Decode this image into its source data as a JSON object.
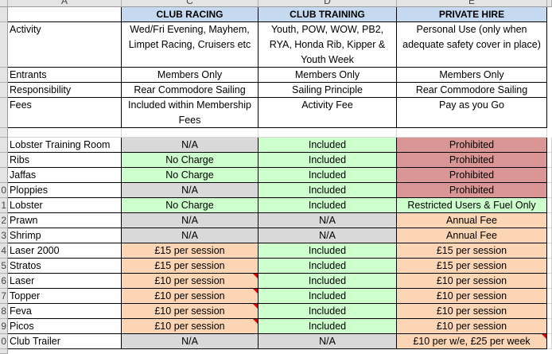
{
  "table": {
    "columns": [
      "A",
      "C",
      "D",
      "E"
    ],
    "header": [
      "CLUB RACING",
      "CLUB TRAINING",
      "PRIVATE HIRE"
    ],
    "info_rows": [
      {
        "label": "Activity",
        "cells": [
          [
            "Wed/Fri Evening, Mayhem,",
            "Limpet Racing, Cruisers etc"
          ],
          [
            "Youth, POW, WOW, PB2,",
            "RYA, Honda Rib, Kipper &",
            "Youth Week"
          ],
          [
            "Personal Use (only when",
            "adequate safety cover in place)"
          ]
        ]
      },
      {
        "label": "Entrants",
        "cells": [
          [
            "Members Only"
          ],
          [
            "Members Only"
          ],
          [
            "Members Only"
          ]
        ]
      },
      {
        "label": "Responsibility",
        "cells": [
          [
            "Rear Commodore Sailing"
          ],
          [
            "Sailing Principle"
          ],
          [
            "Rear Commodore Sailing"
          ]
        ]
      },
      {
        "label": "Fees",
        "cells": [
          [
            "Included within Membership",
            "Fees"
          ],
          [
            "Activity Fee"
          ],
          [
            "Pay as you Go"
          ]
        ]
      }
    ],
    "items": [
      {
        "label": "Lobster Training Room",
        "cells": [
          {
            "text": "N/A",
            "fill": "#d9d9d9"
          },
          {
            "text": "Included",
            "fill": "#ccffcc"
          },
          {
            "text": "Prohibited",
            "fill": "#da9694"
          }
        ]
      },
      {
        "label": "Ribs",
        "cells": [
          {
            "text": "No Charge",
            "fill": "#ccffcc"
          },
          {
            "text": "Included",
            "fill": "#ccffcc"
          },
          {
            "text": "Prohibited",
            "fill": "#da9694"
          }
        ]
      },
      {
        "label": "Jaffas",
        "cells": [
          {
            "text": "No Charge",
            "fill": "#ccffcc"
          },
          {
            "text": "Included",
            "fill": "#ccffcc"
          },
          {
            "text": "Prohibited",
            "fill": "#da9694"
          }
        ]
      },
      {
        "row_number": "0",
        "label": "Ploppies",
        "cells": [
          {
            "text": "N/A",
            "fill": "#d9d9d9"
          },
          {
            "text": "Included",
            "fill": "#ccffcc"
          },
          {
            "text": "Prohibited",
            "fill": "#da9694"
          }
        ]
      },
      {
        "row_number": "1",
        "label": "Lobster",
        "cells": [
          {
            "text": "No Charge",
            "fill": "#ccffcc"
          },
          {
            "text": "Included",
            "fill": "#ccffcc"
          },
          {
            "text": "Restricted Users & Fuel Only",
            "fill": "#ccffcc"
          }
        ]
      },
      {
        "row_number": "2",
        "label": "Prawn",
        "cells": [
          {
            "text": "N/A",
            "fill": "#d9d9d9"
          },
          {
            "text": "N/A",
            "fill": "#d9d9d9"
          },
          {
            "text": "Annual Fee",
            "fill": "#fcd5b4"
          }
        ]
      },
      {
        "row_number": "3",
        "label": "Shrimp",
        "cells": [
          {
            "text": "N/A",
            "fill": "#d9d9d9"
          },
          {
            "text": "N/A",
            "fill": "#d9d9d9"
          },
          {
            "text": "Annual Fee",
            "fill": "#fcd5b4"
          }
        ]
      },
      {
        "row_number": "4",
        "label": "Laser 2000",
        "cells": [
          {
            "text": "£15 per session",
            "fill": "#fcd5b4"
          },
          {
            "text": "Included",
            "fill": "#ccffcc"
          },
          {
            "text": "£15 per session",
            "fill": "#fcd5b4"
          }
        ]
      },
      {
        "row_number": "5",
        "label": "Stratos",
        "cells": [
          {
            "text": "£15 per session",
            "fill": "#fcd5b4"
          },
          {
            "text": "Included",
            "fill": "#ccffcc"
          },
          {
            "text": "£15 per session",
            "fill": "#fcd5b4"
          }
        ]
      },
      {
        "row_number": "6",
        "label": "Laser",
        "cells": [
          {
            "text": "£10 per session",
            "fill": "#fcd5b4",
            "comment": true
          },
          {
            "text": "Included",
            "fill": "#ccffcc"
          },
          {
            "text": "£10 per session",
            "fill": "#fcd5b4"
          }
        ]
      },
      {
        "row_number": "7",
        "label": "Topper",
        "cells": [
          {
            "text": "£10 per session",
            "fill": "#fcd5b4",
            "comment": true
          },
          {
            "text": "Included",
            "fill": "#ccffcc"
          },
          {
            "text": "£10 per session",
            "fill": "#fcd5b4"
          }
        ]
      },
      {
        "row_number": "8",
        "label": "Feva",
        "cells": [
          {
            "text": "£10 per session",
            "fill": "#fcd5b4",
            "comment": true
          },
          {
            "text": "Included",
            "fill": "#ccffcc"
          },
          {
            "text": "£10 per session",
            "fill": "#fcd5b4"
          }
        ]
      },
      {
        "row_number": "9",
        "label": "Picos",
        "cells": [
          {
            "text": "£10 per session",
            "fill": "#fcd5b4",
            "comment": true
          },
          {
            "text": "Included",
            "fill": "#ccffcc"
          },
          {
            "text": "£10 per session",
            "fill": "#fcd5b4"
          }
        ]
      },
      {
        "row_number": "0",
        "label": "Club Trailer",
        "cells": [
          {
            "text": "N/A",
            "fill": "#d9d9d9"
          },
          {
            "text": "N/A",
            "fill": "#d9d9d9"
          },
          {
            "text": "£10 per w/e, £25 per week",
            "fill": "#fcd5b4",
            "comment": true
          }
        ]
      }
    ]
  }
}
